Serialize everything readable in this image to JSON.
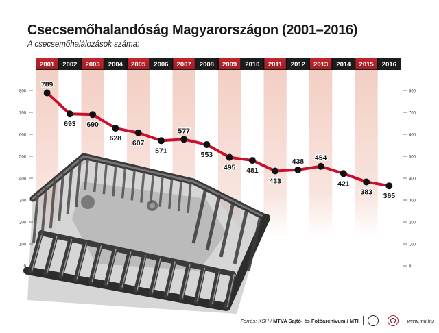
{
  "title": "Csecsemőhalandóság Magyarországon (2001–2016)",
  "subtitle": "A csecsemőhalálozások száma:",
  "colors": {
    "line": "#c8102e",
    "header_bar": "#1c1c1c",
    "header_highlight": "#a51b22",
    "band": "#f3cfc4",
    "marker": "#111111"
  },
  "chart_data": {
    "type": "line",
    "categories": [
      "2001",
      "2002",
      "2003",
      "2004",
      "2005",
      "2006",
      "2007",
      "2008",
      "2009",
      "2010",
      "2011",
      "2012",
      "2013",
      "2014",
      "2015",
      "2016"
    ],
    "series": [
      {
        "values": [
          789,
          693,
          690,
          628,
          607,
          571,
          577,
          553,
          495,
          481,
          433,
          438,
          454,
          421,
          383,
          365
        ]
      }
    ],
    "yticks": [
      0,
      100,
      200,
      300,
      400,
      500,
      600,
      700,
      800
    ],
    "ylim": [
      0,
      800
    ],
    "grid": false,
    "title": "Csecsemőhalandóság Magyarországon (2001–2016)",
    "xlabel": "",
    "ylabel": ""
  },
  "footer": {
    "source_prefix": "Forrás: KSH /",
    "source_main": "MTVA Sajtó- és Fotóarchívum / MTI",
    "url": "www.mti.hu",
    "mtva_logo_text": "MTVA",
    "mti_logo": "mti-logo-icon"
  }
}
